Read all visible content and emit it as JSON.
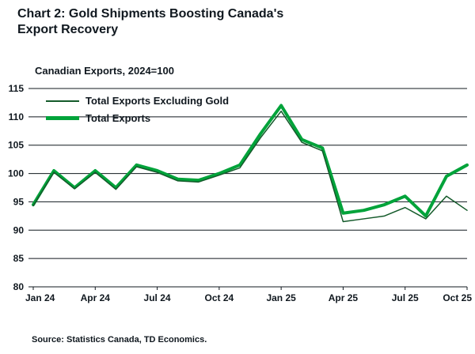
{
  "header": {
    "title_line1": "Chart 2: Gold Shipments Boosting Canada's",
    "title_line2": "Export Recovery"
  },
  "chart": {
    "subtitle": "Canadian Exports, 2024=100",
    "source": "Source: Statistics Canada, TD Economics."
  },
  "legend": {
    "series_excl_gold": "Total Exports Excluding Gold",
    "series_total": "Total Exports"
  },
  "colors": {
    "total_exports_line": "#00a33a",
    "excl_gold_line": "#145a2a",
    "gridline": "#10181f",
    "text": "#10181f"
  },
  "chart_data": {
    "type": "line",
    "title": "Canadian Exports, 2024=100",
    "x": [
      "Jan 24",
      "Feb 24",
      "Mar 24",
      "Apr 24",
      "May 24",
      "Jun 24",
      "Jul 24",
      "Aug 24",
      "Sep 24",
      "Oct 24",
      "Nov 24",
      "Dec 24",
      "Jan 25",
      "Feb 25",
      "Mar 25",
      "Apr 25",
      "May 25",
      "Jun 25",
      "Jul 25",
      "Aug 25",
      "Sep 25",
      "Oct 25"
    ],
    "x_tick_labels": [
      "Jan 24",
      "Apr 24",
      "Jul 24",
      "Oct 24",
      "Jan 25",
      "Apr 25",
      "Jul 25",
      "Oct 25"
    ],
    "x_tick_indices": [
      0,
      3,
      6,
      9,
      12,
      15,
      18,
      21
    ],
    "ylim": [
      80,
      115
    ],
    "yticks": [
      80,
      85,
      90,
      95,
      100,
      105,
      110,
      115
    ],
    "grid": "horizontal",
    "legend_position": "top-left-inside",
    "series": [
      {
        "name": "Total Exports",
        "color": "#00a33a",
        "stroke_width": 4,
        "values": [
          94.5,
          100.5,
          97.5,
          100.5,
          97.5,
          101.5,
          100.5,
          99.0,
          98.8,
          100.0,
          101.5,
          107.0,
          112.0,
          106.0,
          104.5,
          93.0,
          93.5,
          94.5,
          96.0,
          92.5,
          99.5,
          101.5
        ]
      },
      {
        "name": "Total Exports Excluding Gold",
        "color": "#145a2a",
        "stroke_width": 1.5,
        "values": [
          94.3,
          100.2,
          97.3,
          100.2,
          97.2,
          101.2,
          100.2,
          98.7,
          98.5,
          99.7,
          101.0,
          106.3,
          111.0,
          105.5,
          104.0,
          91.5,
          92.0,
          92.5,
          94.0,
          92.0,
          96.0,
          93.5
        ]
      }
    ]
  }
}
